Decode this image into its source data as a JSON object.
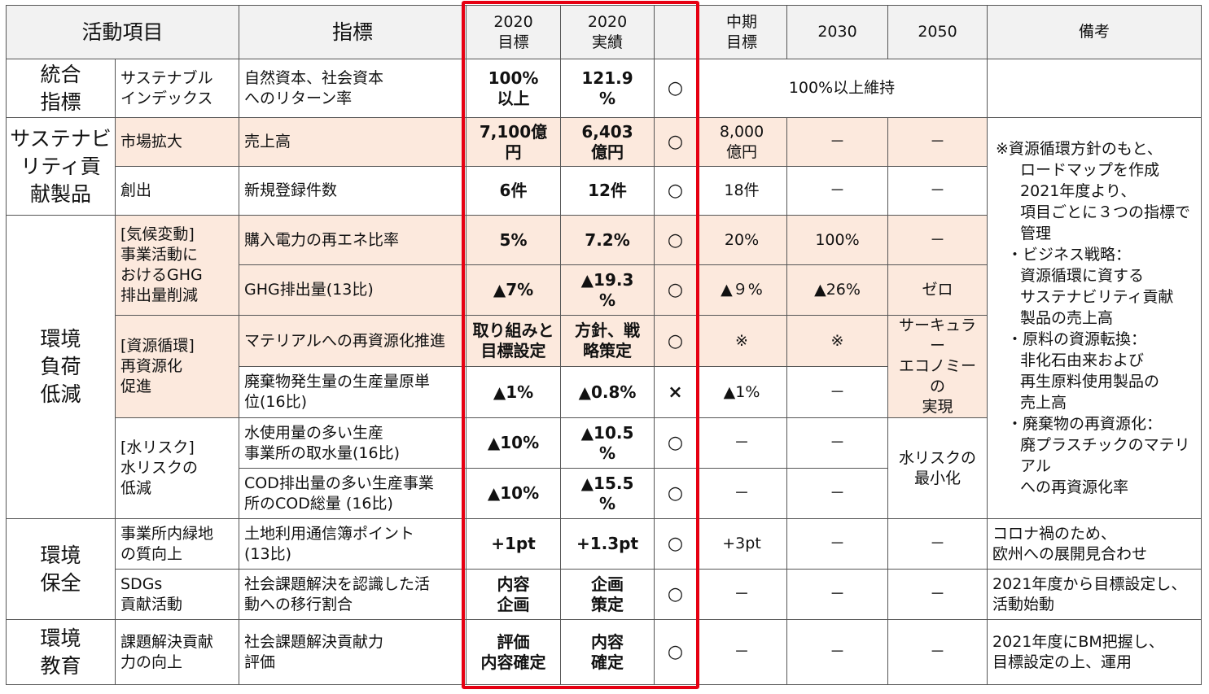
{
  "header": {
    "activity": "活動項目",
    "indicator": "指標",
    "target2020": "2020\n目標",
    "result2020": "2020\n実績",
    "eval": "",
    "midterm": "中期\n目標",
    "y2030": "2030",
    "y2050": "2050",
    "remarks": "備考"
  },
  "rows": [
    {
      "cat": "統合\n指標",
      "sub": "サステナブル\nインデックス",
      "ind": "自然資本、社会資本\nへのリターン率",
      "t": "100%\n以上",
      "r": "121.9\n%",
      "e": "○",
      "mid_merged": "100%以上維持",
      "rem": ""
    },
    {
      "cat": "サステナビ\nリティ貢\n献製品",
      "sub": "市場拡大",
      "ind": "売上高",
      "t": "7,100億\n円",
      "r": "6,403\n億円",
      "e": "○",
      "mid": "8,000\n億円",
      "y2030": "－",
      "y2050": "－"
    },
    {
      "sub": "創出",
      "ind": "新規登録件数",
      "t": "6件",
      "r": "12件",
      "e": "○",
      "mid": "18件",
      "y2030": "－",
      "y2050": "－"
    },
    {
      "cat": "環境\n負荷\n低減",
      "sub": "[気候変動]\n事業活動に\nおけるGHG\n排出量削減",
      "ind": "購入電力の再エネ比率",
      "t": "5%",
      "r": "7.2%",
      "e": "○",
      "mid": "20%",
      "y2030": "100%",
      "y2050": "－"
    },
    {
      "ind": "GHG排出量(13比)",
      "t": "▲7%",
      "r": "▲19.3\n%",
      "e": "○",
      "mid": "▲９%",
      "y2030": "▲26%",
      "y2050": "ゼロ"
    },
    {
      "sub": "[資源循環]\n再資源化\n促進",
      "ind": "マテリアルへの再資源化推進",
      "t": "取り組みと\n目標設定",
      "r": "方針、戦\n略策定",
      "e": "○",
      "mid": "※",
      "y2030": "※",
      "y2050": "サーキュラー\nエコノミーの\n実現"
    },
    {
      "ind": "廃棄物発生量の生産量原単\n位(16比)",
      "t": "▲1%",
      "r": "▲0.8%",
      "e": "×",
      "mid": "▲1%",
      "y2030": "－"
    },
    {
      "sub": "[水リスク]\n水リスクの\n低減",
      "ind": "水使用量の多い生産\n事業所の取水量(16比)",
      "t": "▲10%",
      "r": "▲10.5\n%",
      "e": "○",
      "mid": "－",
      "y2030": "－",
      "y2050": "水リスクの\n最小化"
    },
    {
      "ind": "COD排出量の多い生産事業\n所のCOD総量 (16比)",
      "t": "▲10%",
      "r": "▲15.5\n%",
      "e": "○",
      "mid": "－",
      "y2030": "－"
    },
    {
      "cat": "環境\n保全",
      "sub": "事業所内緑地\nの質向上",
      "ind": "土地利用通信簿ポイント\n(13比)",
      "t": "+1pt",
      "r": "+1.3pt",
      "e": "○",
      "mid": "+3pt",
      "y2030": "－",
      "y2050": "－",
      "rem": "コロナ禍のため、\n欧州への展開見合わせ"
    },
    {
      "sub": "SDGs\n貢献活動",
      "ind": "社会課題解決を認識した活\n動への移行割合",
      "t": "内容\n企画",
      "r": "企画\n策定",
      "e": "○",
      "mid": "－",
      "y2030": "－",
      "y2050": "－",
      "rem": "2021年度から目標設定し、\n活動始動"
    },
    {
      "cat": "環境\n教育",
      "sub": "課題解決貢献\n力の向上",
      "ind": "社会課題解決貢献力\n評価",
      "t": "評価\n内容確定",
      "r": "内容\n確定",
      "e": "○",
      "mid": "－",
      "y2030": "－",
      "y2050": "－",
      "rem": "2021年度にBM把握し、\n目標設定の上、運用"
    }
  ],
  "side_note": {
    "lines": [
      "※資源循環方針のもと、",
      "ロードマップを作成",
      "2021年度より、",
      "項目ごとに３つの指標で",
      "管理",
      "・ビジネス戦略：",
      "資源循環に資する",
      "サステナビリティ貢献",
      "製品の売上高",
      "・原料の資源転換：",
      "非化石由来および",
      "再生原料使用製品の",
      "売上高",
      "・廃棄物の再資源化：",
      "廃プラスチックのマテリアル",
      "への再資源化率"
    ]
  },
  "colors": {
    "highlight": "#e60012",
    "peach": "#fce9dd",
    "header_bg": "#f2f2f2"
  }
}
